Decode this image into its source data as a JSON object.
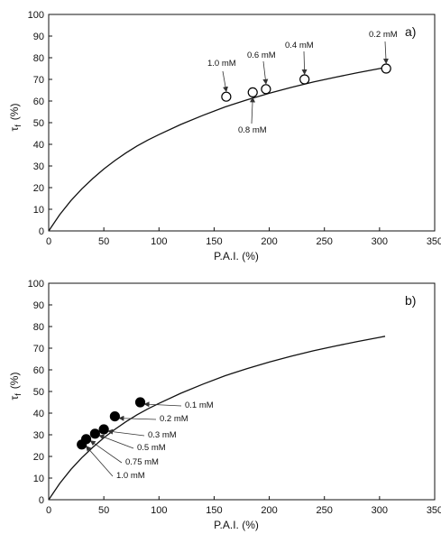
{
  "chart_data": [
    {
      "type": "scatter",
      "panel_label": "a)",
      "xlabel": "P.A.I.  (%)",
      "ylabel_main": "τ",
      "ylabel_sub": "f",
      "ylabel_unit": "(%)",
      "xlim": [
        0,
        350
      ],
      "ylim": [
        0,
        100
      ],
      "xticks": [
        0,
        50,
        100,
        150,
        200,
        250,
        300,
        350
      ],
      "yticks": [
        0,
        10,
        20,
        30,
        40,
        50,
        60,
        70,
        80,
        90,
        100
      ],
      "grid": false,
      "marker": "open-circle",
      "curve": {
        "x": [
          0,
          10,
          20,
          30,
          40,
          50,
          60,
          70,
          80,
          90,
          100,
          120,
          140,
          160,
          180,
          200,
          220,
          240,
          260,
          280,
          300,
          305
        ],
        "y": [
          0,
          7.5,
          13.9,
          19.4,
          24.2,
          28.6,
          32.5,
          36.0,
          39.2,
          42.0,
          44.5,
          49.2,
          53.4,
          57.3,
          60.6,
          63.6,
          66.3,
          68.8,
          71.0,
          73.1,
          75.0,
          75.5
        ]
      },
      "points": [
        {
          "x": 161,
          "y": 62,
          "label": "1.0 mM"
        },
        {
          "x": 185,
          "y": 64,
          "label": "0.8 mM"
        },
        {
          "x": 197,
          "y": 65.5,
          "label": "0.6 mM"
        },
        {
          "x": 232,
          "y": 70,
          "label": "0.4 mM"
        },
        {
          "x": 306,
          "y": 75,
          "label": "0.2 mM"
        }
      ]
    },
    {
      "type": "scatter",
      "panel_label": "b)",
      "xlabel": "P.A.I.  (%)",
      "ylabel_main": "τ",
      "ylabel_sub": "f",
      "ylabel_unit": "(%)",
      "xlim": [
        0,
        350
      ],
      "ylim": [
        0,
        100
      ],
      "xticks": [
        0,
        50,
        100,
        150,
        200,
        250,
        300,
        350
      ],
      "yticks": [
        0,
        10,
        20,
        30,
        40,
        50,
        60,
        70,
        80,
        90,
        100
      ],
      "grid": false,
      "marker": "filled-circle",
      "curve": {
        "x": [
          0,
          10,
          20,
          30,
          40,
          50,
          60,
          70,
          80,
          90,
          100,
          120,
          140,
          160,
          180,
          200,
          220,
          240,
          260,
          280,
          300,
          305
        ],
        "y": [
          0,
          7.5,
          13.9,
          19.4,
          24.2,
          28.6,
          32.5,
          36.0,
          39.2,
          42.0,
          44.5,
          49.2,
          53.4,
          57.3,
          60.6,
          63.6,
          66.3,
          68.8,
          71.0,
          73.1,
          75.0,
          75.5
        ]
      },
      "points": [
        {
          "x": 83,
          "y": 45,
          "label": "0.1 mM"
        },
        {
          "x": 60,
          "y": 38.5,
          "label": "0.2 mM"
        },
        {
          "x": 50,
          "y": 32.5,
          "label": "0.3 mM"
        },
        {
          "x": 42,
          "y": 30.5,
          "label": "0.5 mM"
        },
        {
          "x": 34,
          "y": 28,
          "label": "0.75 mM"
        },
        {
          "x": 30,
          "y": 25.5,
          "label": "1.0 mM"
        }
      ]
    }
  ]
}
